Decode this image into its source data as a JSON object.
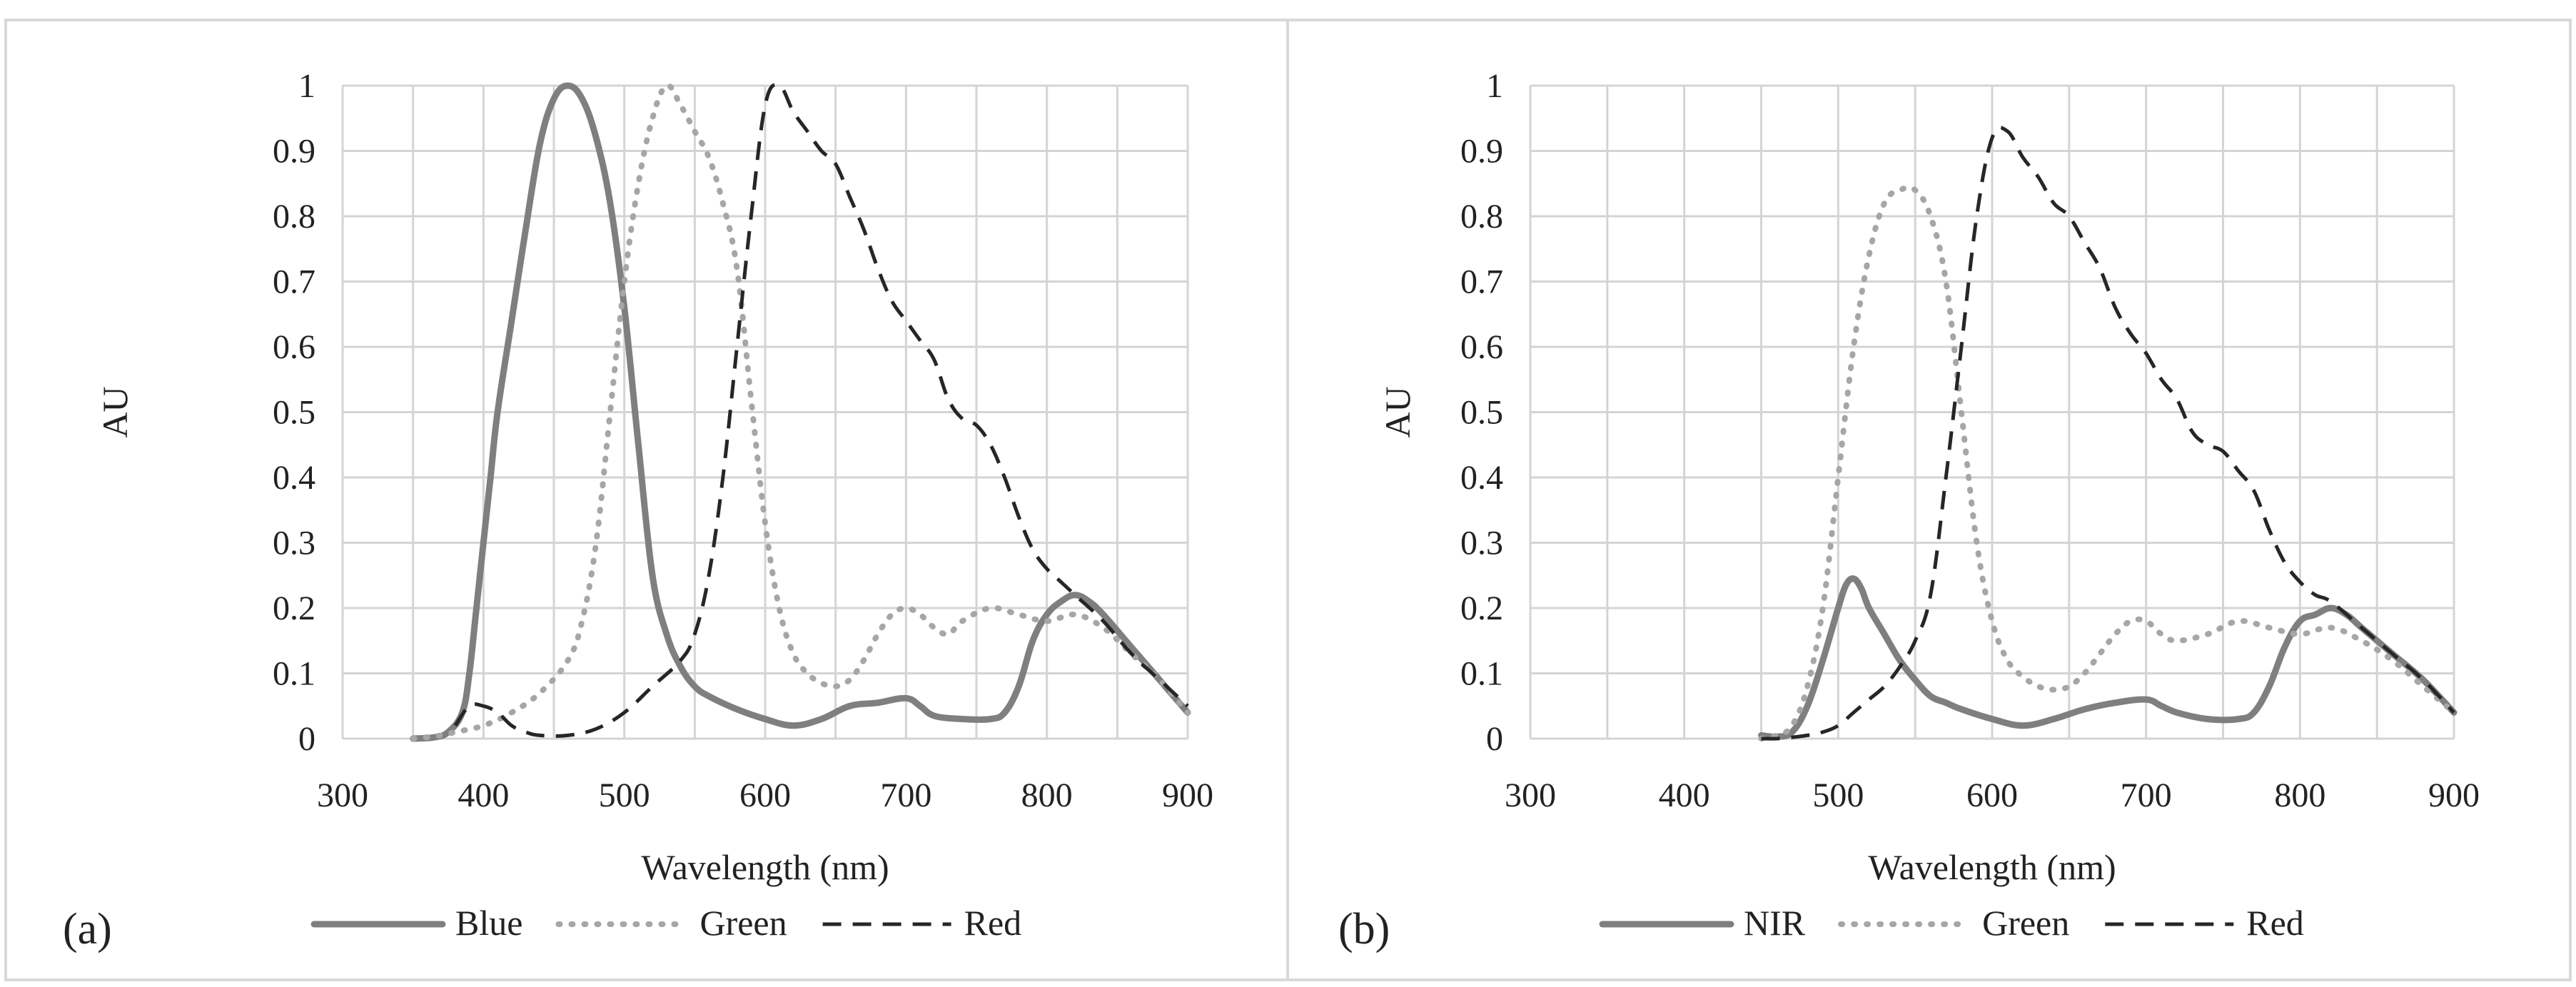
{
  "chart_data": [
    {
      "type": "line",
      "panel_label": "(a)",
      "xlabel": "Wavelength (nm)",
      "ylabel": "AU",
      "xlim": [
        300,
        900
      ],
      "ylim": [
        0,
        1
      ],
      "x_ticks": [
        "300",
        "400",
        "500",
        "600",
        "700",
        "800",
        "900"
      ],
      "y_ticks": [
        "0",
        "0.1",
        "0.2",
        "0.3",
        "0.4",
        "0.5",
        "0.6",
        "0.7",
        "0.8",
        "0.9",
        "1"
      ],
      "legend_position": "bottom",
      "grid": true,
      "series": [
        {
          "name": "Blue",
          "style": "solid",
          "color": "#7f7f7f",
          "x": [
            350,
            365,
            375,
            385,
            390,
            395,
            400,
            405,
            410,
            420,
            430,
            440,
            450,
            460,
            470,
            480,
            490,
            500,
            510,
            520,
            530,
            540,
            550,
            560,
            580,
            600,
            620,
            640,
            660,
            680,
            700,
            710,
            720,
            740,
            760,
            770,
            780,
            790,
            800,
            810,
            820,
            830,
            840,
            860,
            880,
            900
          ],
          "y": [
            0,
            0.002,
            0.01,
            0.04,
            0.1,
            0.2,
            0.3,
            0.4,
            0.5,
            0.64,
            0.78,
            0.91,
            0.98,
            1.0,
            0.98,
            0.92,
            0.82,
            0.66,
            0.45,
            0.25,
            0.16,
            0.11,
            0.08,
            0.065,
            0.045,
            0.03,
            0.02,
            0.03,
            0.05,
            0.055,
            0.062,
            0.05,
            0.035,
            0.03,
            0.03,
            0.04,
            0.08,
            0.15,
            0.19,
            0.21,
            0.22,
            0.21,
            0.19,
            0.14,
            0.09,
            0.04
          ]
        },
        {
          "name": "Green",
          "style": "dotted",
          "color": "#a6a6a6",
          "x": [
            350,
            370,
            380,
            400,
            420,
            440,
            460,
            470,
            480,
            490,
            500,
            510,
            520,
            530,
            540,
            550,
            560,
            570,
            580,
            590,
            600,
            610,
            620,
            630,
            640,
            650,
            660,
            670,
            680,
            690,
            700,
            710,
            720,
            730,
            740,
            760,
            780,
            800,
            820,
            840,
            860,
            880,
            900
          ],
          "y": [
            0,
            0.005,
            0.01,
            0.02,
            0.04,
            0.07,
            0.12,
            0.18,
            0.3,
            0.5,
            0.7,
            0.85,
            0.95,
            1.0,
            0.97,
            0.93,
            0.89,
            0.82,
            0.72,
            0.52,
            0.33,
            0.2,
            0.13,
            0.1,
            0.085,
            0.08,
            0.09,
            0.12,
            0.16,
            0.19,
            0.2,
            0.19,
            0.17,
            0.16,
            0.18,
            0.2,
            0.19,
            0.18,
            0.19,
            0.17,
            0.13,
            0.09,
            0.04
          ]
        },
        {
          "name": "Red",
          "style": "dashed",
          "color": "#262626",
          "x": [
            380,
            390,
            400,
            410,
            420,
            430,
            440,
            460,
            480,
            500,
            520,
            540,
            550,
            560,
            570,
            580,
            590,
            600,
            610,
            620,
            630,
            640,
            650,
            660,
            670,
            680,
            690,
            700,
            710,
            720,
            730,
            740,
            750,
            760,
            770,
            780,
            790,
            800,
            810,
            820,
            840,
            860,
            880,
            900
          ],
          "y": [
            0.02,
            0.05,
            0.05,
            0.04,
            0.02,
            0.01,
            0.005,
            0.005,
            0.015,
            0.04,
            0.08,
            0.12,
            0.16,
            0.25,
            0.4,
            0.6,
            0.8,
            0.97,
            1.0,
            0.96,
            0.93,
            0.9,
            0.88,
            0.83,
            0.78,
            0.72,
            0.67,
            0.64,
            0.61,
            0.58,
            0.52,
            0.49,
            0.48,
            0.45,
            0.4,
            0.34,
            0.29,
            0.26,
            0.24,
            0.22,
            0.18,
            0.13,
            0.09,
            0.05
          ]
        }
      ]
    },
    {
      "type": "line",
      "panel_label": "(b)",
      "xlabel": "Wavelength (nm)",
      "ylabel": "AU",
      "xlim": [
        300,
        900
      ],
      "ylim": [
        0,
        1
      ],
      "x_ticks": [
        "300",
        "400",
        "500",
        "600",
        "700",
        "800",
        "900"
      ],
      "y_ticks": [
        "0",
        "0.1",
        "0.2",
        "0.3",
        "0.4",
        "0.5",
        "0.6",
        "0.7",
        "0.8",
        "0.9",
        "1"
      ],
      "legend_position": "bottom",
      "grid": true,
      "series": [
        {
          "name": "NIR",
          "style": "solid",
          "color": "#7f7f7f",
          "x": [
            450,
            460,
            470,
            480,
            490,
            500,
            505,
            510,
            515,
            520,
            530,
            540,
            550,
            560,
            570,
            580,
            600,
            620,
            640,
            660,
            680,
            700,
            710,
            720,
            740,
            760,
            770,
            780,
            790,
            800,
            810,
            820,
            830,
            840,
            860,
            880,
            900
          ],
          "y": [
            0.005,
            0.003,
            0.01,
            0.05,
            0.12,
            0.2,
            0.235,
            0.245,
            0.23,
            0.2,
            0.16,
            0.12,
            0.09,
            0.065,
            0.055,
            0.045,
            0.03,
            0.02,
            0.03,
            0.045,
            0.055,
            0.06,
            0.05,
            0.04,
            0.03,
            0.03,
            0.04,
            0.08,
            0.14,
            0.18,
            0.19,
            0.2,
            0.19,
            0.17,
            0.13,
            0.09,
            0.04
          ]
        },
        {
          "name": "Green",
          "style": "dotted",
          "color": "#a6a6a6",
          "x": [
            450,
            460,
            470,
            480,
            490,
            500,
            510,
            520,
            530,
            540,
            550,
            560,
            570,
            580,
            590,
            600,
            610,
            620,
            630,
            640,
            650,
            660,
            670,
            680,
            690,
            700,
            710,
            720,
            740,
            760,
            780,
            800,
            820,
            840,
            860,
            880,
            900
          ],
          "y": [
            0,
            0.005,
            0.02,
            0.08,
            0.2,
            0.4,
            0.6,
            0.74,
            0.82,
            0.84,
            0.84,
            0.8,
            0.7,
            0.5,
            0.3,
            0.18,
            0.12,
            0.095,
            0.08,
            0.075,
            0.08,
            0.1,
            0.13,
            0.16,
            0.18,
            0.18,
            0.16,
            0.15,
            0.16,
            0.18,
            0.17,
            0.16,
            0.17,
            0.15,
            0.12,
            0.08,
            0.04
          ]
        },
        {
          "name": "Red",
          "style": "dashed",
          "color": "#262626",
          "x": [
            450,
            460,
            470,
            480,
            490,
            500,
            510,
            520,
            530,
            540,
            550,
            560,
            570,
            580,
            590,
            600,
            610,
            620,
            630,
            640,
            650,
            660,
            670,
            680,
            690,
            700,
            710,
            720,
            730,
            740,
            750,
            760,
            770,
            780,
            790,
            800,
            810,
            820,
            840,
            860,
            880,
            900
          ],
          "y": [
            0,
            0,
            0.002,
            0.005,
            0.01,
            0.02,
            0.04,
            0.06,
            0.08,
            0.11,
            0.15,
            0.22,
            0.4,
            0.6,
            0.8,
            0.92,
            0.93,
            0.89,
            0.86,
            0.82,
            0.8,
            0.76,
            0.72,
            0.66,
            0.62,
            0.59,
            0.55,
            0.52,
            0.47,
            0.45,
            0.44,
            0.41,
            0.38,
            0.32,
            0.27,
            0.24,
            0.22,
            0.21,
            0.17,
            0.13,
            0.09,
            0.04
          ]
        }
      ]
    }
  ]
}
